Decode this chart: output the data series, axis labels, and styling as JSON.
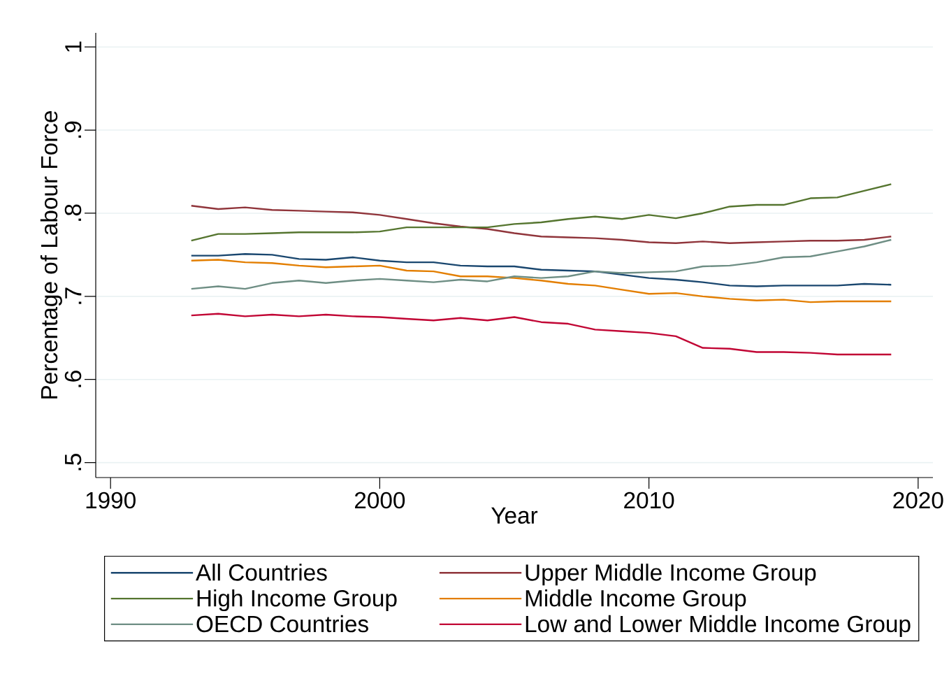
{
  "chart_data": {
    "type": "line",
    "xlabel": "Year",
    "ylabel": "Percentage of Labour Force",
    "x": [
      1993,
      1994,
      1995,
      1996,
      1997,
      1998,
      1999,
      2000,
      2001,
      2002,
      2003,
      2004,
      2005,
      2006,
      2007,
      2008,
      2009,
      2010,
      2011,
      2012,
      2013,
      2014,
      2015,
      2016,
      2017,
      2018,
      2019
    ],
    "series": [
      {
        "name": "All Countries",
        "color": "#1a476f",
        "values": [
          0.749,
          0.749,
          0.751,
          0.75,
          0.745,
          0.744,
          0.747,
          0.743,
          0.741,
          0.741,
          0.737,
          0.736,
          0.736,
          0.732,
          0.731,
          0.73,
          0.726,
          0.722,
          0.72,
          0.717,
          0.713,
          0.712,
          0.713,
          0.713,
          0.713,
          0.715,
          0.714
        ]
      },
      {
        "name": "Upper Middle Income Group",
        "color": "#90353b",
        "values": [
          0.809,
          0.805,
          0.807,
          0.804,
          0.803,
          0.802,
          0.801,
          0.798,
          0.793,
          0.788,
          0.784,
          0.781,
          0.776,
          0.772,
          0.771,
          0.77,
          0.768,
          0.765,
          0.764,
          0.766,
          0.764,
          0.765,
          0.766,
          0.767,
          0.767,
          0.768,
          0.772
        ]
      },
      {
        "name": "High Income Group",
        "color": "#55752f",
        "values": [
          0.767,
          0.775,
          0.775,
          0.776,
          0.777,
          0.777,
          0.777,
          0.778,
          0.783,
          0.783,
          0.783,
          0.783,
          0.787,
          0.789,
          0.793,
          0.796,
          0.793,
          0.798,
          0.794,
          0.8,
          0.808,
          0.81,
          0.81,
          0.818,
          0.819,
          0.827,
          0.835
        ]
      },
      {
        "name": "Middle Income Group",
        "color": "#e37e00",
        "values": [
          0.743,
          0.744,
          0.741,
          0.74,
          0.737,
          0.735,
          0.736,
          0.737,
          0.731,
          0.73,
          0.724,
          0.724,
          0.722,
          0.719,
          0.715,
          0.713,
          0.708,
          0.703,
          0.704,
          0.7,
          0.697,
          0.695,
          0.696,
          0.693,
          0.694,
          0.694,
          0.694
        ]
      },
      {
        "name": "OECD Countries",
        "color": "#6e8e84",
        "values": [
          0.709,
          0.712,
          0.709,
          0.716,
          0.719,
          0.716,
          0.719,
          0.721,
          0.719,
          0.717,
          0.72,
          0.718,
          0.724,
          0.722,
          0.724,
          0.73,
          0.728,
          0.729,
          0.73,
          0.736,
          0.737,
          0.741,
          0.747,
          0.748,
          0.754,
          0.76,
          0.768
        ]
      },
      {
        "name": "Low and Lower Middle Income Group",
        "color": "#c10534",
        "values": [
          0.677,
          0.679,
          0.676,
          0.678,
          0.676,
          0.678,
          0.676,
          0.675,
          0.673,
          0.671,
          0.674,
          0.671,
          0.675,
          0.669,
          0.667,
          0.66,
          0.658,
          0.656,
          0.652,
          0.638,
          0.637,
          0.633,
          0.633,
          0.632,
          0.63,
          0.63,
          0.63
        ]
      }
    ],
    "xlim": [
      1989.45,
      2020.55
    ],
    "ylim": [
      0.482,
      1.017
    ],
    "xticks": [
      1990,
      2000,
      2010,
      2020
    ],
    "yticks": [
      {
        "value": 0.5,
        "label": ".5"
      },
      {
        "value": 0.6,
        "label": ".6"
      },
      {
        "value": 0.7,
        "label": ".7"
      },
      {
        "value": 0.8,
        "label": ".8"
      },
      {
        "value": 0.9,
        "label": ".9"
      },
      {
        "value": 1,
        "label": "1"
      }
    ],
    "grid": "y",
    "legend": "bottom",
    "marker": "none",
    "line_style": "solid"
  }
}
